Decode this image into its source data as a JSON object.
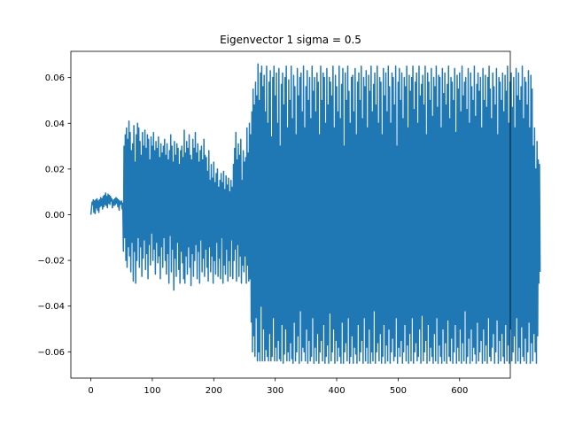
{
  "chart_data": {
    "type": "line",
    "title": "Eigenvector 1 sigma = 0.5",
    "xlabel": "",
    "ylabel": "",
    "xlim": [
      -32.5,
      682.5
    ],
    "ylim": [
      -0.0715,
      0.0715
    ],
    "x_ticks": [
      0,
      100,
      200,
      300,
      400,
      500,
      600
    ],
    "x_tick_labels": [
      "0",
      "100",
      "200",
      "300",
      "400",
      "500",
      "600"
    ],
    "y_ticks": [
      -0.06,
      -0.04,
      -0.02,
      0.0,
      0.02,
      0.04,
      0.06
    ],
    "y_tick_labels": [
      "−0.06",
      "−0.04",
      "−0.02",
      "0.00",
      "0.02",
      "0.04",
      "0.06"
    ],
    "grid": false,
    "line_color": "#1f77b4",
    "series": [
      {
        "x_start": 0,
        "x_step": 1,
        "values": [
          0.0,
          0.0025,
          0.0055,
          0.0045,
          0.0065,
          0.001,
          0.006,
          0.0005,
          0.0065,
          0.003,
          0.007,
          0.002,
          0.006,
          0.001,
          0.0065,
          0.0035,
          0.0075,
          0.004,
          0.007,
          0.0025,
          0.008,
          0.0035,
          0.0085,
          0.0045,
          0.0095,
          0.004,
          0.008,
          0.003,
          0.009,
          0.005,
          0.0085,
          0.0045,
          0.008,
          0.006,
          0.007,
          0.003,
          0.0055,
          0.0065,
          0.004,
          0.007,
          0.0045,
          0.0075,
          0.005,
          0.007,
          0.0035,
          0.0065,
          0.002,
          0.006,
          0.0045,
          0.005,
          0.006,
          0.0025,
          0.005,
          -0.016,
          0.03,
          -0.01,
          0.035,
          -0.02,
          0.038,
          -0.023,
          0.033,
          -0.014,
          0.041,
          -0.018,
          0.036,
          -0.025,
          0.028,
          -0.012,
          0.031,
          -0.029,
          0.039,
          -0.016,
          0.023,
          -0.03,
          0.035,
          -0.02,
          0.04,
          -0.01,
          0.038,
          -0.023,
          0.032,
          -0.014,
          0.026,
          -0.027,
          0.036,
          -0.019,
          0.03,
          -0.011,
          0.037,
          -0.024,
          0.029,
          -0.017,
          0.035,
          -0.028,
          0.033,
          -0.013,
          0.024,
          -0.022,
          0.034,
          -0.008,
          0.03,
          -0.02,
          0.036,
          -0.015,
          0.028,
          -0.026,
          0.032,
          -0.012,
          0.029,
          -0.021,
          0.034,
          -0.018,
          0.025,
          -0.028,
          0.031,
          -0.014,
          0.027,
          -0.023,
          0.03,
          -0.01,
          0.033,
          -0.02,
          0.026,
          -0.026,
          0.031,
          -0.017,
          0.024,
          -0.03,
          0.028,
          -0.009,
          0.035,
          -0.025,
          0.03,
          -0.015,
          0.023,
          -0.033,
          0.032,
          -0.019,
          0.026,
          -0.027,
          0.031,
          -0.012,
          0.029,
          -0.024,
          0.022,
          -0.03,
          0.028,
          -0.016,
          0.03,
          -0.021,
          0.025,
          -0.028,
          0.037,
          -0.03,
          0.027,
          -0.018,
          0.032,
          -0.026,
          0.029,
          -0.014,
          0.035,
          -0.023,
          0.026,
          -0.031,
          0.024,
          -0.017,
          0.033,
          -0.027,
          0.029,
          -0.02,
          0.036,
          -0.013,
          0.027,
          -0.028,
          0.031,
          -0.016,
          0.023,
          -0.03,
          0.028,
          -0.011,
          0.03,
          -0.025,
          0.024,
          -0.019,
          0.033,
          -0.027,
          0.026,
          -0.015,
          0.025,
          -0.023,
          0.019,
          -0.029,
          0.028,
          -0.014,
          0.015,
          -0.025,
          0.022,
          -0.018,
          0.016,
          -0.03,
          0.023,
          -0.02,
          0.014,
          -0.026,
          0.018,
          -0.012,
          0.02,
          -0.027,
          0.012,
          -0.019,
          0.015,
          -0.028,
          0.018,
          -0.01,
          0.014,
          -0.03,
          0.019,
          -0.022,
          0.011,
          -0.026,
          0.017,
          -0.015,
          0.013,
          -0.029,
          0.016,
          -0.02,
          0.01,
          -0.027,
          0.015,
          -0.011,
          0.012,
          -0.028,
          0.022,
          -0.02,
          0.029,
          -0.015,
          0.036,
          -0.029,
          0.024,
          -0.013,
          0.031,
          -0.027,
          0.026,
          -0.018,
          0.033,
          -0.03,
          0.015,
          -0.022,
          0.028,
          -0.025,
          0.023,
          -0.018,
          0.025,
          -0.03,
          0.038,
          -0.022,
          0.027,
          -0.029,
          0.04,
          -0.028,
          0.035,
          -0.047,
          0.045,
          -0.06,
          0.055,
          -0.053,
          0.048,
          -0.062,
          0.058,
          -0.045,
          0.052,
          -0.064,
          0.066,
          -0.06,
          0.05,
          -0.064,
          0.062,
          -0.04,
          0.065,
          -0.064,
          0.056,
          -0.05,
          0.061,
          -0.064,
          0.045,
          -0.059,
          0.065,
          -0.062,
          0.04,
          -0.064,
          0.058,
          -0.052,
          0.063,
          -0.064,
          0.034,
          -0.062,
          0.06,
          -0.045,
          0.065,
          -0.064,
          0.052,
          -0.058,
          0.062,
          -0.064,
          0.04,
          -0.055,
          0.064,
          -0.063,
          0.03,
          -0.064,
          0.057,
          -0.048,
          0.062,
          -0.065,
          0.048,
          -0.061,
          0.06,
          -0.05,
          0.065,
          -0.064,
          0.038,
          -0.06,
          0.059,
          -0.064,
          0.05,
          -0.056,
          0.065,
          -0.063,
          0.042,
          -0.065,
          0.061,
          -0.047,
          0.056,
          -0.064,
          0.035,
          -0.06,
          0.064,
          -0.053,
          0.052,
          -0.065,
          0.06,
          -0.042,
          0.062,
          -0.064,
          0.045,
          -0.058,
          0.065,
          -0.06,
          0.038,
          -0.064,
          0.056,
          -0.05,
          0.063,
          -0.065,
          0.05,
          -0.055,
          0.06,
          -0.064,
          0.042,
          -0.062,
          0.065,
          -0.045,
          0.054,
          -0.065,
          0.06,
          -0.058,
          0.045,
          -0.064,
          0.062,
          -0.052,
          0.058,
          -0.065,
          0.035,
          -0.06,
          0.065,
          -0.055,
          0.05,
          -0.064,
          0.062,
          -0.048,
          0.06,
          -0.065,
          0.04,
          -0.062,
          0.064,
          -0.057,
          0.048,
          -0.065,
          0.06,
          -0.043,
          0.058,
          -0.064,
          0.052,
          -0.06,
          0.065,
          -0.05,
          0.038,
          -0.065,
          0.061,
          -0.055,
          0.056,
          -0.064,
          0.045,
          -0.058,
          0.065,
          -0.062,
          0.042,
          -0.065,
          0.057,
          -0.047,
          0.064,
          -0.065,
          0.03,
          -0.06,
          0.062,
          -0.056,
          0.05,
          -0.064,
          0.065,
          -0.045,
          0.054,
          -0.065,
          0.04,
          -0.062,
          0.06,
          -0.053,
          0.061,
          -0.065,
          0.045,
          -0.058,
          0.064,
          -0.061,
          0.035,
          -0.065,
          0.058,
          -0.048,
          0.062,
          -0.064,
          0.05,
          -0.06,
          0.065,
          -0.055,
          0.042,
          -0.065,
          0.06,
          -0.045,
          0.056,
          -0.064,
          0.063,
          -0.058,
          0.038,
          -0.065,
          0.061,
          -0.05,
          0.054,
          -0.065,
          0.065,
          -0.06,
          0.045,
          -0.064,
          0.057,
          -0.042,
          0.062,
          -0.065,
          0.048,
          -0.06,
          0.065,
          -0.056,
          0.04,
          -0.064,
          0.06,
          -0.052,
          0.058,
          -0.065,
          0.035,
          -0.062,
          0.064,
          -0.048,
          0.052,
          -0.065,
          0.062,
          -0.057,
          0.045,
          -0.064,
          0.065,
          -0.05,
          0.056,
          -0.065,
          0.04,
          -0.06,
          0.062,
          -0.054,
          0.06,
          -0.064,
          0.048,
          -0.062,
          0.065,
          -0.045,
          0.03,
          -0.065,
          0.058,
          -0.058,
          0.064,
          -0.062,
          0.05,
          -0.055,
          0.062,
          -0.065,
          0.042,
          -0.06,
          0.06,
          -0.048,
          0.056,
          -0.064,
          0.065,
          -0.057,
          0.038,
          -0.065,
          0.061,
          -0.052,
          0.054,
          -0.064,
          0.06,
          -0.045,
          0.065,
          -0.065,
          0.046,
          -0.06,
          0.058,
          -0.056,
          0.062,
          -0.064,
          0.04,
          -0.062,
          0.065,
          -0.05,
          0.052,
          -0.065,
          0.057,
          -0.044,
          0.061,
          -0.064,
          0.048,
          -0.06,
          0.065,
          -0.055,
          0.035,
          -0.065,
          0.062,
          -0.048,
          0.058,
          -0.064,
          0.05,
          -0.058,
          0.064,
          -0.062,
          0.043,
          -0.065,
          0.06,
          -0.052,
          0.056,
          -0.064,
          0.065,
          -0.045,
          0.047,
          -0.065,
          0.061,
          -0.057,
          0.06,
          -0.062,
          0.038,
          -0.065,
          0.064,
          -0.05,
          0.053,
          -0.064,
          0.062,
          -0.056,
          0.048,
          -0.065,
          0.057,
          -0.046,
          0.065,
          -0.062,
          0.042,
          -0.064,
          0.06,
          -0.054,
          0.058,
          -0.065,
          0.05,
          -0.06,
          0.064,
          -0.048,
          0.036,
          -0.065,
          0.061,
          -0.058,
          0.055,
          -0.064,
          0.062,
          -0.05,
          0.045,
          -0.065,
          0.065,
          -0.056,
          0.052,
          -0.064,
          0.058,
          -0.042,
          0.06,
          -0.065,
          0.046,
          -0.062,
          0.064,
          -0.054,
          0.04,
          -0.065,
          0.062,
          -0.05,
          0.056,
          -0.064,
          0.05,
          -0.058,
          0.065,
          -0.061,
          0.043,
          -0.065,
          0.057,
          -0.047,
          0.062,
          -0.064,
          0.054,
          -0.06,
          0.06,
          -0.055,
          0.038,
          -0.065,
          0.064,
          -0.05,
          0.05,
          -0.064,
          0.061,
          -0.057,
          0.047,
          -0.065,
          0.06,
          -0.045,
          0.065,
          -0.062,
          0.055,
          -0.064,
          0.042,
          -0.058,
          0.062,
          -0.052,
          0.056,
          -0.065,
          0.048,
          -0.06,
          0.064,
          -0.046,
          0.035,
          -0.065,
          0.06,
          -0.055,
          0.058,
          -0.064,
          0.05,
          -0.052,
          0.062,
          -0.062,
          0.045,
          -0.065,
          0.061,
          -0.048,
          0.054,
          -0.064,
          0.065,
          -0.057,
          0.04,
          -0.065,
          0.058,
          -0.05,
          0.062,
          -0.064,
          0.047,
          -0.06,
          0.06,
          -0.053,
          0.038,
          -0.065,
          0.064,
          -0.045,
          0.052,
          -0.064,
          0.062,
          -0.058,
          0.05,
          -0.065,
          0.056,
          -0.049,
          0.065,
          -0.062,
          0.042,
          -0.064,
          0.06,
          -0.054,
          0.058,
          -0.065,
          0.048,
          -0.06,
          0.063,
          -0.047,
          0.038,
          -0.065,
          0.061,
          -0.056,
          0.055,
          -0.064,
          0.03,
          -0.052,
          0.038,
          -0.06,
          0.02,
          -0.065,
          0.032,
          -0.053,
          0.024,
          -0.03,
          0.022,
          -0.025
        ]
      }
    ]
  }
}
